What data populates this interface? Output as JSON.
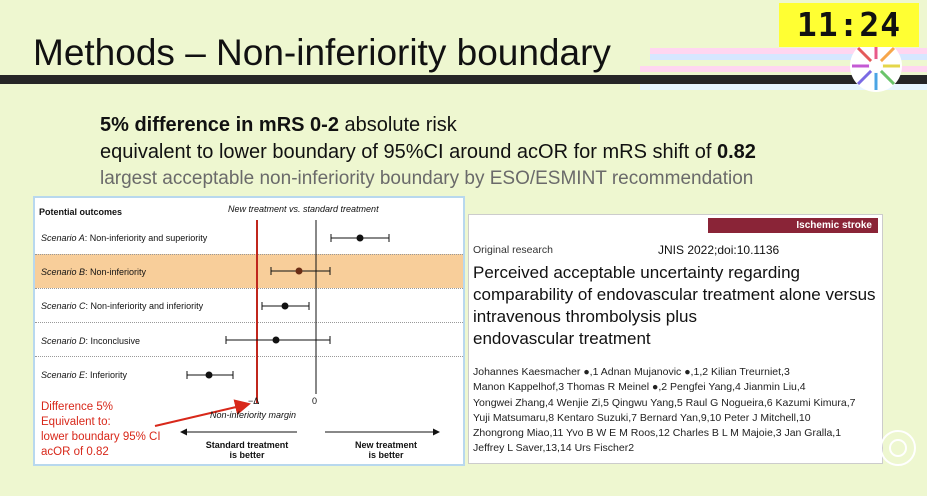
{
  "slide": {
    "title": "Methods – Non-inferiority boundary",
    "timer": "11:24",
    "bullet1_bold": "5% difference in mRS 0-2",
    "bullet1_rest": " absolute risk",
    "bullet2_text": "equivalent to lower boundary of 95%CI around acOR for mRS shift of ",
    "bullet2_bold": "0.82",
    "bullet3": "largest acceptable non-inferiority boundary by ESO/ESMINT recommendation"
  },
  "figure": {
    "header_left": "Potential outcomes",
    "header_right": "New treatment vs. standard treatment",
    "scenarios": [
      {
        "label": "Scenario A",
        "desc": ": Non-inferiority and superiority"
      },
      {
        "label": "Scenario B",
        "desc": ": Non-inferiority"
      },
      {
        "label": "Scenario C",
        "desc": ": Non-inferiority and inferiority"
      },
      {
        "label": "Scenario D",
        "desc": ": Inconclusive"
      },
      {
        "label": "Scenario E",
        "desc": ": Inferiority"
      }
    ],
    "delta_label": "−Δ",
    "zero_label": "0",
    "margin_label": "Non-inferiority margin",
    "left_arrow_label_1": "Standard treatment",
    "left_arrow_label_2": "is better",
    "right_arrow_label_1": "New treatment",
    "right_arrow_label_2": "is better",
    "annotation": [
      "Difference 5%",
      "Equivalent to:",
      "lower boundary 95% CI",
      "acOR of 0.82"
    ]
  },
  "paper": {
    "category": "Ischemic stroke",
    "type": "Original research",
    "citation": "JNIS 2022;doi:10.1136",
    "title_lines": [
      "Perceived acceptable uncertainty regarding",
      "comparability of endovascular treatment alone versus",
      "intravenous thrombolysis plus",
      "endovascular treatment"
    ],
    "author_lines": [
      "Johannes Kaesmacher ●,1 Adnan Mujanovic ●,1,2 Kilian Treurniet,3",
      "Manon Kappelhof,3 Thomas R Meinel ●,2 Pengfei Yang,4 Jianmin Liu,4",
      "Yongwei Zhang,4 Wenjie Zi,5 Qingwu Yang,5 Raul G Nogueira,6 Kazumi Kimura,7",
      "Yuji Matsumaru,8 Kentaro Suzuki,7 Bernard Yan,9,10 Peter J Mitchell,10",
      "Zhongrong Miao,11 Yvo B W E M Roos,12 Charles B L M Majoie,3 Jan Gralla,1",
      "Jeffrey L Saver,13,14 Urs Fischer2"
    ]
  },
  "colors": {
    "background": "#eef7d0",
    "highlight_row": "#f8ce9a",
    "paper_header": "#8a2437",
    "annotation_red": "#d8281a",
    "boundary_line": "#c0261c",
    "timer_bg": "#ffff33"
  }
}
